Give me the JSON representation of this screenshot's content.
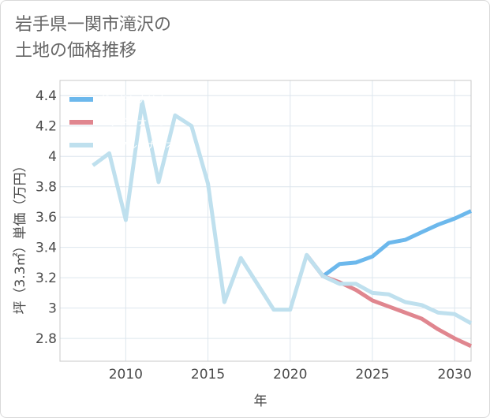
{
  "title_lines": [
    "岩手県一関市滝沢の",
    "土地の価格推移"
  ],
  "chart_data": {
    "type": "line",
    "xlabel": "年",
    "ylabel": "坪（3.3㎡）単価（万円）",
    "xlim": [
      2006,
      2031
    ],
    "ylim": [
      2.65,
      4.5
    ],
    "x_ticks": [
      2010,
      2015,
      2020,
      2025,
      2030
    ],
    "y_ticks": [
      2.8,
      3,
      3.2,
      3.4,
      3.6,
      3.8,
      4,
      4.2,
      4.4
    ],
    "x_tick_labels": [
      "2010",
      "2015",
      "2020",
      "2025",
      "2030"
    ],
    "y_tick_labels": [
      "2.8",
      "3",
      "3.2",
      "3.4",
      "3.6",
      "3.8",
      "4",
      "4.2",
      "4.4"
    ],
    "grid": true,
    "legend_position": "top-left",
    "series": [
      {
        "name": "グッドシナリオ",
        "color": "#6cb8ec",
        "points": [
          [
            2021,
            3.35
          ],
          [
            2022,
            3.21
          ],
          [
            2023,
            3.29
          ],
          [
            2024,
            3.3
          ],
          [
            2025,
            3.34
          ],
          [
            2026,
            3.43
          ],
          [
            2027,
            3.45
          ],
          [
            2028,
            3.5
          ],
          [
            2029,
            3.55
          ],
          [
            2030,
            3.59
          ],
          [
            2031,
            3.64
          ]
        ]
      },
      {
        "name": "バッドシナリオ",
        "color": "#e0868f",
        "points": [
          [
            2021,
            3.35
          ],
          [
            2022,
            3.21
          ],
          [
            2023,
            3.17
          ],
          [
            2024,
            3.12
          ],
          [
            2025,
            3.05
          ],
          [
            2026,
            3.01
          ],
          [
            2027,
            2.97
          ],
          [
            2028,
            2.93
          ],
          [
            2029,
            2.86
          ],
          [
            2030,
            2.8
          ],
          [
            2031,
            2.75
          ]
        ]
      },
      {
        "name": "ノーマルシナリオ",
        "color": "#bfe0ee",
        "points": [
          [
            2008,
            3.94
          ],
          [
            2009,
            4.02
          ],
          [
            2010,
            3.58
          ],
          [
            2011,
            4.36
          ],
          [
            2012,
            3.83
          ],
          [
            2013,
            4.27
          ],
          [
            2014,
            4.2
          ],
          [
            2015,
            3.82
          ],
          [
            2016,
            3.04
          ],
          [
            2017,
            3.33
          ],
          [
            2018,
            3.16
          ],
          [
            2019,
            2.99
          ],
          [
            2020,
            2.99
          ],
          [
            2021,
            3.35
          ],
          [
            2022,
            3.21
          ],
          [
            2023,
            3.16
          ],
          [
            2024,
            3.16
          ],
          [
            2025,
            3.1
          ],
          [
            2026,
            3.09
          ],
          [
            2027,
            3.04
          ],
          [
            2028,
            3.02
          ],
          [
            2029,
            2.97
          ],
          [
            2030,
            2.96
          ],
          [
            2031,
            2.9
          ]
        ]
      }
    ]
  }
}
